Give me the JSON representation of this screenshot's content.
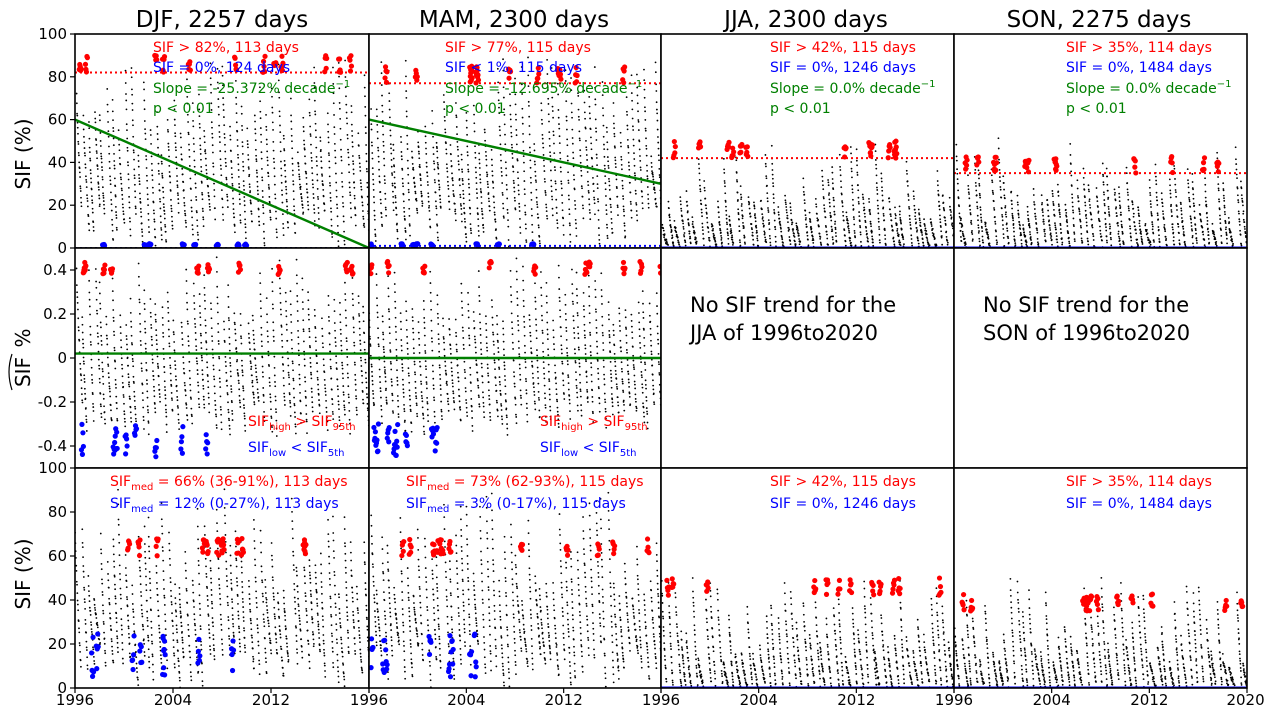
{
  "figure": {
    "x_ticks": [
      "1996",
      "2004",
      "2012",
      "1996",
      "2004",
      "2012",
      "1996",
      "2004",
      "2012",
      "1996",
      "2004",
      "2012",
      "2020"
    ],
    "row_ylabels": [
      "SIF (%)",
      "%",
      "SIF (%)"
    ],
    "row_ylabel_hat": "SIF",
    "rows_top_bottom_ticks": [
      "0",
      "20",
      "40",
      "60",
      "80",
      "100"
    ],
    "row_mid_ticks": [
      "-0.4",
      "-0.2",
      "0",
      "0.2",
      "0.4"
    ]
  },
  "colors": {
    "high": "#ff0000",
    "low": "#0000ff",
    "trend": "#008000",
    "data": "#000000"
  },
  "panels": {
    "djf": {
      "title": "DJF, 2257 days",
      "top": {
        "high_text": "SIF > 82%, 113 days",
        "low_text": "SIF = 0%, 124 days",
        "slope_text": "Slope = -25.372% decade",
        "slope_sup": "−1",
        "p_text": "p < 0.01"
      },
      "mid": {
        "high_a": "SIF",
        "high_sub": "high",
        "high_b": " > ",
        "high_c": "SIF",
        "high_sub2": "95th",
        "low_a": "SIF",
        "low_sub": "low",
        "low_b": " < ",
        "low_c": "SIF",
        "low_sub2": "5th"
      },
      "bot": {
        "high_a": "SIF",
        "high_sub": "med",
        "high_b": " = 66% (36-91%), 113 days",
        "low_a": "SIF",
        "low_sub": "med",
        "low_b": " = 12% (0-27%), 113 days"
      }
    },
    "mam": {
      "title": "MAM, 2300 days",
      "top": {
        "high_text": "SIF > 77%, 115 days",
        "low_text": "SIF < 1%, 115 days",
        "slope_text": "Slope = -12.695% decade",
        "slope_sup": "−1",
        "p_text": "p < 0.01"
      },
      "mid": {
        "high_a": "SIF",
        "high_sub": "high",
        "high_b": " > ",
        "high_c": "SIF",
        "high_sub2": "95th",
        "low_a": "SIF",
        "low_sub": "low",
        "low_b": " < ",
        "low_c": "SIF",
        "low_sub2": "5th"
      },
      "bot": {
        "high_a": "SIF",
        "high_sub": "med",
        "high_b": " = 73% (62-93%), 115 days",
        "low_a": "SIF",
        "low_sub": "med",
        "low_b": " = 3% (0-17%), 115 days"
      }
    },
    "jja": {
      "title": "JJA, 2300 days",
      "top": {
        "high_text": "SIF > 42%, 115 days",
        "low_text": "SIF = 0%, 1246 days",
        "slope_text": "Slope = 0.0% decade",
        "slope_sup": "−1",
        "p_text": "p < 0.01"
      },
      "mid": {
        "line1": "No SIF trend for the",
        "line2": "JJA of 1996to2020"
      },
      "bot": {
        "high_text": "SIF > 42%, 115 days",
        "low_text": "SIF = 0%, 1246 days"
      }
    },
    "son": {
      "title": "SON, 2275 days",
      "top": {
        "high_text": "SIF > 35%, 114 days",
        "low_text": "SIF = 0%, 1484 days",
        "slope_text": "Slope = 0.0% decade",
        "slope_sup": "−1",
        "p_text": "p < 0.01"
      },
      "mid": {
        "line1": "No SIF trend for the",
        "line2": "SON of 1996to2020"
      },
      "bot": {
        "high_text": "SIF > 35%, 114 days",
        "low_text": "SIF = 0%, 1484 days"
      }
    }
  },
  "chart_data": [
    {
      "type": "scatter",
      "title": "DJF, 2257 days",
      "ylabel": "SIF (%)",
      "ylim": [
        0,
        100
      ],
      "xlim": [
        1996,
        2020
      ],
      "series": [
        {
          "name": "SIF > 82%, 113 days",
          "color": "#ff0000"
        },
        {
          "name": "SIF = 0%, 124 days",
          "color": "#0000ff"
        }
      ],
      "threshold_high": 82,
      "threshold_low": 0,
      "trend": {
        "x": [
          1996,
          2020
        ],
        "y": [
          60,
          0
        ]
      }
    },
    {
      "type": "scatter",
      "title": "MAM, 2300 days",
      "ylabel": "SIF (%)",
      "ylim": [
        0,
        100
      ],
      "xlim": [
        1996,
        2020
      ],
      "series": [
        {
          "name": "SIF > 77%, 115 days",
          "color": "#ff0000"
        },
        {
          "name": "SIF < 1%, 115 days",
          "color": "#0000ff"
        }
      ],
      "threshold_high": 77,
      "threshold_low": 1,
      "trend": {
        "x": [
          1996,
          2020
        ],
        "y": [
          60,
          30
        ]
      }
    },
    {
      "type": "scatter",
      "title": "JJA, 2300 days",
      "ylim": [
        0,
        100
      ],
      "xlim": [
        1996,
        2020
      ],
      "threshold_high": 42,
      "threshold_low": 0
    },
    {
      "type": "scatter",
      "title": "SON, 2275 days",
      "ylim": [
        0,
        100
      ],
      "xlim": [
        1996,
        2020
      ],
      "threshold_high": 35,
      "threshold_low": 0
    },
    {
      "type": "scatter",
      "ylim": [
        -0.5,
        0.5
      ],
      "xlim": [
        1996,
        2020
      ],
      "trend": {
        "x": [
          1996,
          2020
        ],
        "y": [
          0.02,
          0.02
        ]
      }
    },
    {
      "type": "scatter",
      "ylim": [
        -0.5,
        0.5
      ],
      "xlim": [
        1996,
        2020
      ],
      "trend": {
        "x": [
          1996,
          2020
        ],
        "y": [
          0.0,
          0.0
        ]
      }
    },
    {
      "type": "scatter",
      "ylim": [
        0,
        100
      ],
      "xlim": [
        1996,
        2020
      ]
    },
    {
      "type": "scatter",
      "ylim": [
        0,
        100
      ],
      "xlim": [
        1996,
        2020
      ]
    }
  ]
}
